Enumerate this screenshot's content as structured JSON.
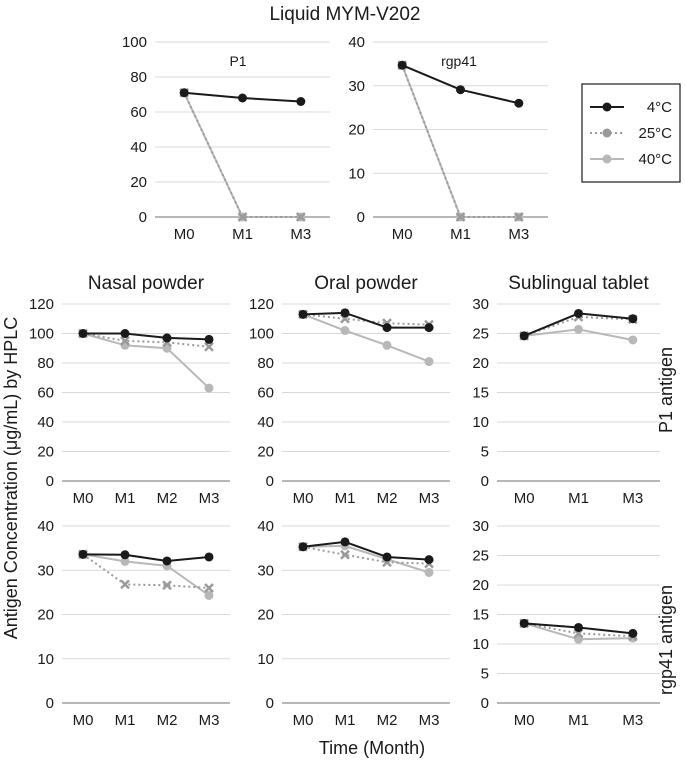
{
  "figure_title": "Liquid MYM-V202",
  "y_axis_label": "Antigen Concentration (μg/mL) by HPLC",
  "x_axis_label": "Time (Month)",
  "row_labels": {
    "p1": "P1 antigen",
    "rgp41": "rgp41 antigen"
  },
  "legend": [
    {
      "label": "4°C",
      "style": "solid",
      "color": "#1a1a1a"
    },
    {
      "label": "25°C",
      "style": "dotted",
      "color": "#9a9a9a"
    },
    {
      "label": "40°C",
      "style": "solid",
      "color": "#b8b8b8"
    }
  ],
  "chart_data": [
    {
      "type": "line",
      "id": "liquid-p1",
      "title": "",
      "inner_label": "P1",
      "categories": [
        "M0",
        "M1",
        "M3"
      ],
      "ylim": [
        0,
        100
      ],
      "yticks": [
        0,
        20,
        40,
        60,
        80,
        100
      ],
      "series": [
        {
          "name": "4°C",
          "values": [
            71,
            68,
            66
          ]
        },
        {
          "name": "25°C",
          "values": [
            71,
            0,
            0
          ]
        },
        {
          "name": "40°C",
          "values": [
            71,
            0,
            0
          ]
        }
      ]
    },
    {
      "type": "line",
      "id": "liquid-rgp41",
      "title": "",
      "inner_label": "rgp41",
      "categories": [
        "M0",
        "M1",
        "M3"
      ],
      "ylim": [
        0,
        40
      ],
      "yticks": [
        0,
        10,
        20,
        30,
        40
      ],
      "series": [
        {
          "name": "4°C",
          "values": [
            34.7,
            29.1,
            26
          ]
        },
        {
          "name": "25°C",
          "values": [
            34.7,
            0,
            0
          ]
        },
        {
          "name": "40°C",
          "values": [
            34.7,
            0,
            0
          ]
        }
      ]
    },
    {
      "type": "line",
      "id": "nasal-p1",
      "title": "Nasal powder",
      "inner_label": "",
      "categories": [
        "M0",
        "M1",
        "M2",
        "M3"
      ],
      "ylim": [
        0,
        120
      ],
      "yticks": [
        0,
        20,
        40,
        60,
        80,
        100,
        120
      ],
      "series": [
        {
          "name": "4°C",
          "values": [
            100,
            100,
            97,
            96
          ]
        },
        {
          "name": "25°C",
          "values": [
            100,
            95,
            94,
            91
          ]
        },
        {
          "name": "40°C",
          "values": [
            100,
            92,
            90,
            63
          ]
        }
      ]
    },
    {
      "type": "line",
      "id": "oral-p1",
      "title": "Oral powder",
      "inner_label": "",
      "categories": [
        "M0",
        "M1",
        "M2",
        "M3"
      ],
      "ylim": [
        0,
        120
      ],
      "yticks": [
        0,
        20,
        40,
        60,
        80,
        100,
        120
      ],
      "series": [
        {
          "name": "4°C",
          "values": [
            113,
            114,
            104,
            104
          ]
        },
        {
          "name": "25°C",
          "values": [
            113,
            110,
            107,
            106
          ]
        },
        {
          "name": "40°C",
          "values": [
            113,
            102,
            92,
            81
          ]
        }
      ]
    },
    {
      "type": "line",
      "id": "sublingual-p1",
      "title": "Sublingual tablet",
      "inner_label": "",
      "categories": [
        "M0",
        "M1",
        "M3"
      ],
      "ylim": [
        0,
        30
      ],
      "yticks": [
        0,
        5,
        10,
        15,
        20,
        25,
        30
      ],
      "series": [
        {
          "name": "4°C",
          "values": [
            24.6,
            28.4,
            27.5
          ]
        },
        {
          "name": "25°C",
          "values": [
            24.6,
            27.8,
            27.4
          ]
        },
        {
          "name": "40°C",
          "values": [
            24.6,
            25.7,
            23.9
          ]
        }
      ]
    },
    {
      "type": "line",
      "id": "nasal-rgp41",
      "title": "",
      "inner_label": "",
      "categories": [
        "M0",
        "M1",
        "M2",
        "M3"
      ],
      "ylim": [
        0,
        40
      ],
      "yticks": [
        0,
        10,
        20,
        30,
        40
      ],
      "series": [
        {
          "name": "4°C",
          "values": [
            33.6,
            33.5,
            32.1,
            33
          ]
        },
        {
          "name": "25°C",
          "values": [
            33.6,
            26.8,
            26.6,
            26
          ]
        },
        {
          "name": "40°C",
          "values": [
            33.6,
            32,
            31,
            24.3
          ]
        }
      ]
    },
    {
      "type": "line",
      "id": "oral-rgp41",
      "title": "",
      "inner_label": "",
      "categories": [
        "M0",
        "M1",
        "M2",
        "M3"
      ],
      "ylim": [
        0,
        40
      ],
      "yticks": [
        0,
        10,
        20,
        30,
        40
      ],
      "series": [
        {
          "name": "4°C",
          "values": [
            35.3,
            36.4,
            33,
            32.4
          ]
        },
        {
          "name": "25°C",
          "values": [
            35.3,
            33.5,
            31.8,
            31.5
          ]
        },
        {
          "name": "40°C",
          "values": [
            35.3,
            35.5,
            32.5,
            29.5
          ]
        }
      ]
    },
    {
      "type": "line",
      "id": "sublingual-rgp41",
      "title": "",
      "inner_label": "",
      "categories": [
        "M0",
        "M1",
        "M3"
      ],
      "ylim": [
        0,
        30
      ],
      "yticks": [
        0,
        5,
        10,
        15,
        20,
        25,
        30
      ],
      "series": [
        {
          "name": "4°C",
          "values": [
            13.5,
            12.8,
            11.8
          ]
        },
        {
          "name": "25°C",
          "values": [
            13.5,
            11.8,
            11.3
          ]
        },
        {
          "name": "40°C",
          "values": [
            13.5,
            10.8,
            11
          ]
        }
      ]
    }
  ]
}
